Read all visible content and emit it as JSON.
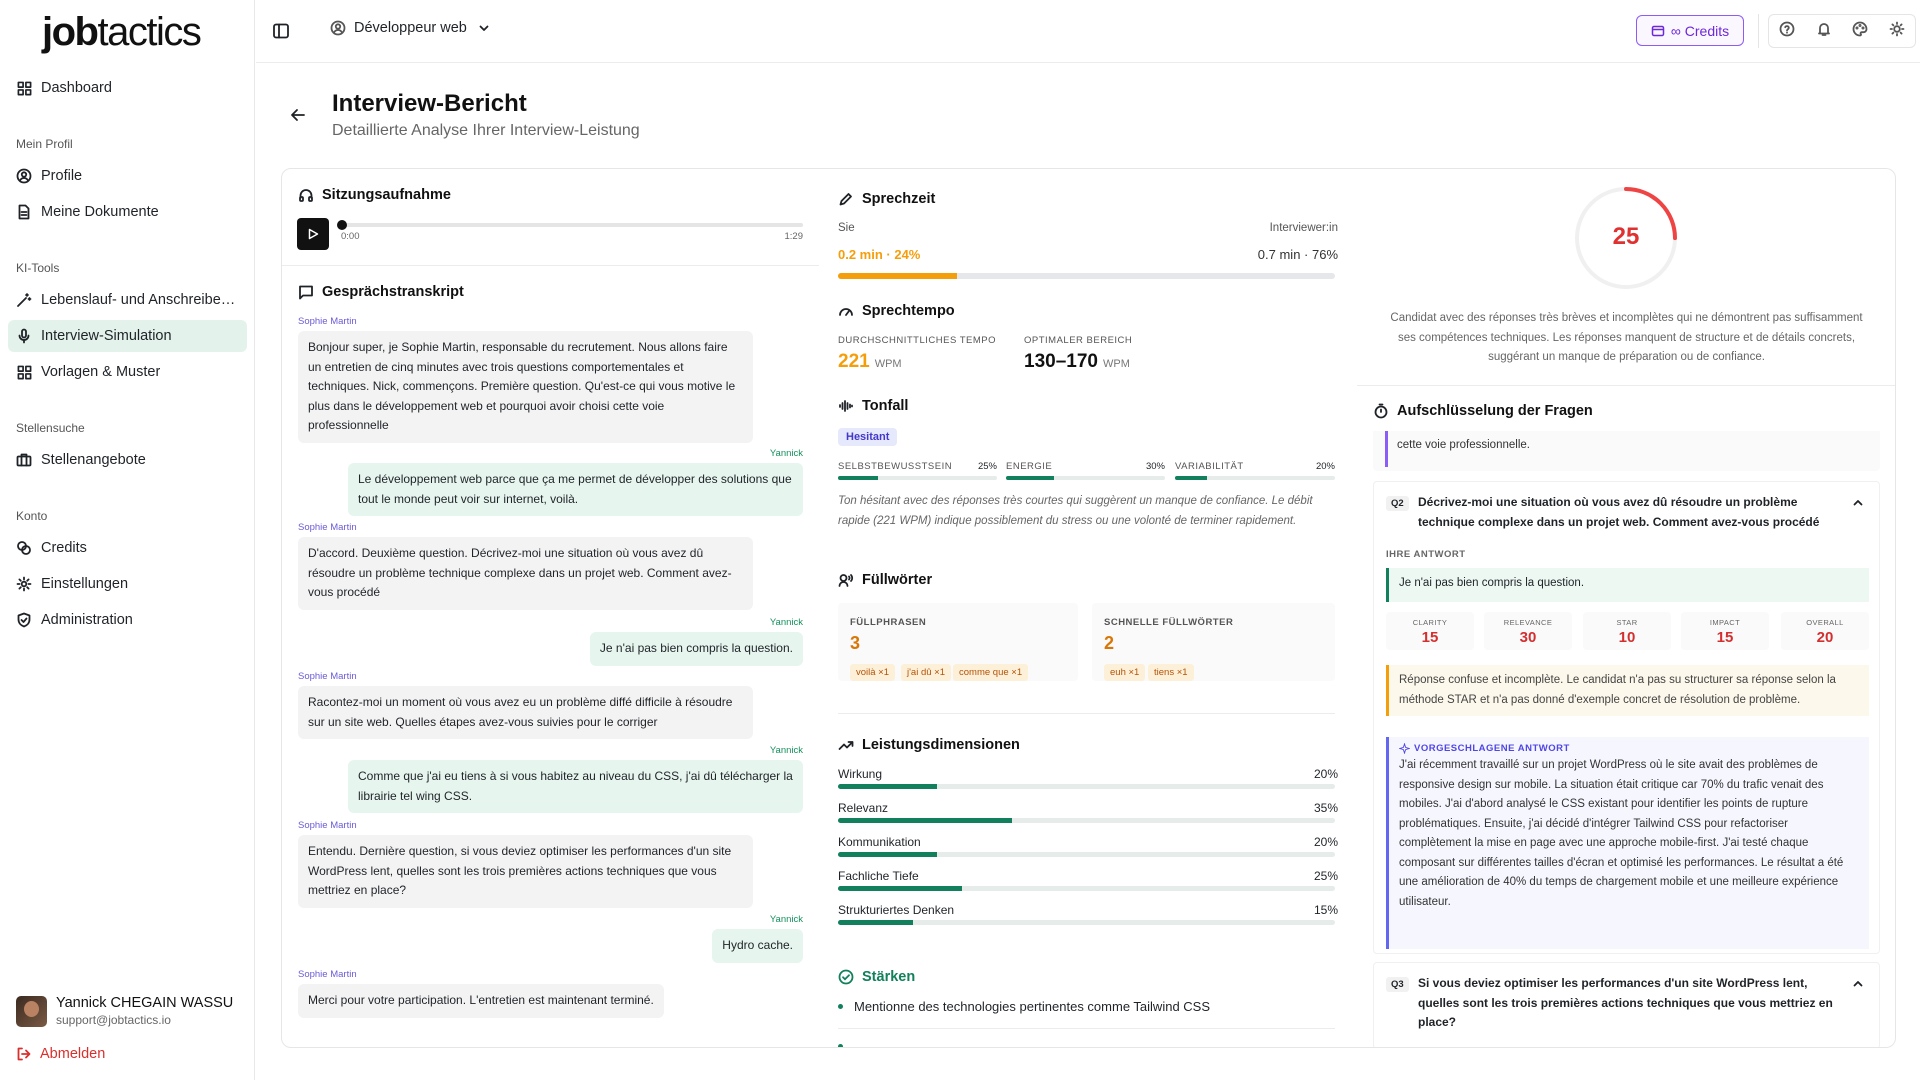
{
  "app": {
    "logo_bold": "job",
    "logo_light": "tactics"
  },
  "sidebar": {
    "dashboard": "Dashboard",
    "sec_profile": "Mein Profil",
    "profile": "Profile",
    "documents": "Meine Dokumente",
    "sec_ai": "KI-Tools",
    "cv": "Lebenslauf- und Anschreiben-Generator",
    "interview": "Interview-Simulation",
    "templates": "Vorlagen & Muster",
    "sec_jobs": "Stellensuche",
    "jobs": "Stellenangebote",
    "sec_account": "Konto",
    "credits": "Credits",
    "settings": "Einstellungen",
    "admin": "Administration",
    "user_name": "Yannick CHEGAIN WASSU",
    "user_email": "support@jobtactics.io",
    "logout": "Abmelden"
  },
  "topbar": {
    "role": "Développeur web",
    "credits": "∞ Credits"
  },
  "header": {
    "title": "Interview-Bericht",
    "subtitle": "Detaillierte Analyse Ihrer Interview-Leistung"
  },
  "recording": {
    "title": "Sitzungsaufnahme",
    "current": "0:00",
    "duration": "1:29",
    "progress": 0
  },
  "transcript": {
    "title": "Gesprächstranskript",
    "messages": [
      {
        "speaker": "Sophie Martin",
        "text": "Bonjour super, je Sophie Martin, responsable du recrutement. Nous allons faire un entretien de cinq minutes avec trois questions comportementales et techniques. Nick, commençons. Première question. Qu'est-ce qui vous motive le plus dans le développement web et pourquoi avoir choisi cette voie professionnelle"
      },
      {
        "speaker": "Yannick",
        "text": "Le développement web parce que ça me permet de développer des solutions que tout le monde peut voir sur internet, voilà."
      },
      {
        "speaker": "Sophie Martin",
        "text": "D'accord. Deuxième question. Décrivez-moi une situation où vous avez dû résoudre un problème technique complexe dans un projet web. Comment avez-vous procédé"
      },
      {
        "speaker": "Yannick",
        "text": "Je n'ai pas bien compris la question."
      },
      {
        "speaker": "Sophie Martin",
        "text": "Racontez-moi un moment où vous avez eu un problème diffé difficile à résoudre sur un site web. Quelles étapes avez-vous suivies pour le corriger"
      },
      {
        "speaker": "Yannick",
        "text": "Comme que j'ai eu tiens à si vous habitez au niveau du CSS, j'ai dû télécharger la librairie tel wing CSS."
      },
      {
        "speaker": "Sophie Martin",
        "text": "Entendu. Dernière question, si vous deviez optimiser les performances d'un site WordPress lent, quelles sont les trois premières actions techniques que vous mettriez en place?"
      },
      {
        "speaker": "Yannick",
        "text": "Hydro cache."
      },
      {
        "speaker": "Sophie Martin",
        "text": "Merci pour votre participation. L'entretien est maintenant terminé."
      }
    ]
  },
  "speech": {
    "title": "Sprechzeit",
    "you_label": "Sie",
    "interviewer_label": "Interviewer:in",
    "you_value": "0.2 min · 24%",
    "interviewer_value": "0.7 min · 76%",
    "you_share": 24
  },
  "tempo": {
    "title": "Sprechtempo",
    "avg_label": "Durchschnittliches Tempo",
    "avg_value": "221",
    "unit": "WPM",
    "opt_label": "Optimaler Bereich",
    "opt_value": "130–170"
  },
  "tone": {
    "title": "Tonfall",
    "badge": "Hesitant",
    "metrics": [
      {
        "label": "Selbstbewusstsein",
        "value": "25%",
        "pct": 25
      },
      {
        "label": "Energie",
        "value": "30%",
        "pct": 30
      },
      {
        "label": "Variabilität",
        "value": "20%",
        "pct": 20
      }
    ],
    "note": "Ton hésitant avec des réponses très courtes qui suggèrent un manque de confiance. Le débit rapide (221 WPM) indique possiblement du stress ou une volonté de terminer rapidement."
  },
  "fillers": {
    "title": "Füllwörter",
    "phrases_label": "Füllphrasen",
    "phrases_count": "3",
    "phrases": [
      "voilà ×1",
      "j'ai dû ×1",
      "comme que ×1"
    ],
    "quick_label": "Schnelle Füllwörter",
    "quick_count": "2",
    "quick": [
      "euh ×1",
      "tiens ×1"
    ]
  },
  "dimensions": {
    "title": "Leistungsdimensionen",
    "items": [
      {
        "label": "Wirkung",
        "value": "20%",
        "pct": 20
      },
      {
        "label": "Relevanz",
        "value": "35%",
        "pct": 35
      },
      {
        "label": "Kommunikation",
        "value": "20%",
        "pct": 20
      },
      {
        "label": "Fachliche Tiefe",
        "value": "25%",
        "pct": 25
      },
      {
        "label": "Strukturiertes Denken",
        "value": "15%",
        "pct": 15
      }
    ]
  },
  "strengths": {
    "title": "Stärken",
    "items": [
      "Mentionne des technologies pertinentes comme Tailwind CSS"
    ]
  },
  "overall": {
    "score": "25",
    "score_pct": 25,
    "summary": "Candidat avec des réponses très brèves et incomplètes qui ne démontrent pas suffisamment ses compétences techniques. Les réponses manquent de structure et de détails concrets, suggérant un manque de préparation ou de confiance."
  },
  "breakdown": {
    "title": "Aufschlüsselung der Fragen",
    "prev_tail": "cette voie professionnelle.",
    "q2": {
      "num": "Q2",
      "text": "Décrivez-moi une situation où vous avez dû résoudre un problème technique complexe dans un projet web. Comment avez-vous procédé",
      "answer_label": "Ihre Antwort",
      "answer": "Je n'ai pas bien compris la question.",
      "scores": [
        {
          "k": "CLARITY",
          "v": "15"
        },
        {
          "k": "RELEVANCE",
          "v": "30"
        },
        {
          "k": "STAR",
          "v": "10"
        },
        {
          "k": "IMPACT",
          "v": "15"
        },
        {
          "k": "OVERALL",
          "v": "20"
        }
      ],
      "feedback": "Réponse confuse et incomplète. Le candidat n'a pas su structurer sa réponse selon la méthode STAR et n'a pas donné d'exemple concret de résolution de problème.",
      "suggested_label": "Vorgeschlagene Antwort",
      "suggested": "J'ai récemment travaillé sur un projet WordPress où le site avait des problèmes de responsive design sur mobile. La situation était critique car 70% du trafic venait des mobiles. J'ai d'abord analysé le CSS existant pour identifier les points de rupture problématiques. Ensuite, j'ai décidé d'intégrer Tailwind CSS pour refactoriser complètement la mise en page avec une approche mobile-first. J'ai testé chaque composant sur différentes tailles d'écran et optimisé les performances. Le résultat a été une amélioration de 40% du temps de chargement mobile et une meilleure expérience utilisateur."
    },
    "q3": {
      "num": "Q3",
      "text": "Si vous deviez optimiser les performances d'un site WordPress lent, quelles sont les trois premières actions techniques que vous mettriez en place?"
    }
  },
  "colors": {
    "accent": "#12805c",
    "danger": "#ef4444",
    "brand_purple": "#6d28d9",
    "orange": "#f59e0b"
  }
}
